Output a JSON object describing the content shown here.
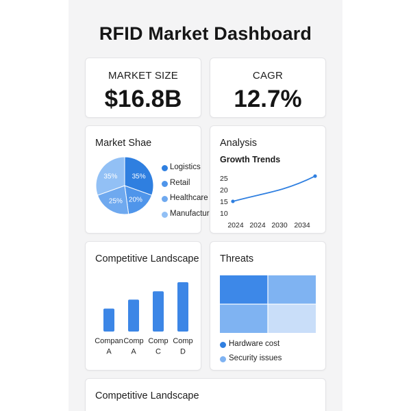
{
  "title": "RFID Market Dashboard",
  "kpis": {
    "market_size": {
      "label": "MARKET SIZE",
      "value": "$16.8B"
    },
    "cagr": {
      "label": "CAGR",
      "value": "12.7%"
    }
  },
  "market_share": {
    "title": "Market Shae",
    "chart_data": {
      "type": "pie",
      "labels": [
        "Logistics",
        "Retail",
        "Healthcare",
        "Manufacturing"
      ],
      "values": [
        35,
        20,
        25,
        35
      ],
      "slice_labels": [
        "35%",
        "20%",
        "25%",
        "35%"
      ],
      "colors": [
        "#2f7fe0",
        "#4f95ea",
        "#6fa9ef",
        "#92c0f5"
      ]
    },
    "legend": [
      {
        "label": "Logistics",
        "color": "#2f7fe0"
      },
      {
        "label": "Retail",
        "color": "#4f95ea"
      },
      {
        "label": "Healthcare",
        "color": "#6fa9ef"
      },
      {
        "label": "Manufacturing",
        "color": "#92c0f5"
      }
    ]
  },
  "analysis": {
    "title": "Analysis",
    "subtitle": "Growth Trends",
    "chart_data": {
      "type": "line",
      "x_tick_labels": [
        "2024",
        "2024",
        "2030",
        "2034"
      ],
      "y_ticks": [
        10,
        15,
        20,
        25
      ],
      "ylim": [
        10,
        27
      ],
      "points": [
        {
          "x": 0,
          "y": 15
        },
        {
          "x": 1,
          "y": 17.3
        },
        {
          "x": 2,
          "y": 20.3
        },
        {
          "x": 3.3,
          "y": 25.8
        }
      ],
      "xlim": [
        0,
        3.3
      ],
      "color": "#2f7fe0"
    }
  },
  "competitive": {
    "title": "Competitive Landscape",
    "chart_data": {
      "type": "bar",
      "categories": [
        "Compan A",
        "Comp A",
        "Comp C",
        "Comp D"
      ],
      "category_lines": [
        [
          "Compan",
          "A"
        ],
        [
          "Comp",
          "A"
        ],
        [
          "Comp",
          "C"
        ],
        [
          "Comp",
          "D"
        ]
      ],
      "values": [
        33,
        46,
        58,
        71
      ],
      "ylim": [
        0,
        75
      ],
      "color": "#3c86e6"
    }
  },
  "threats": {
    "title": "Threats",
    "tiles": [
      {
        "name": "tile-top-left",
        "color": "#3d88e8"
      },
      {
        "name": "tile-top-right",
        "color": "#7fb3f2"
      },
      {
        "name": "tile-bottom-left",
        "color": "#7fb3f2"
      },
      {
        "name": "tile-bottom-right",
        "color": "#c9def9"
      }
    ],
    "legend": [
      {
        "label": "Hardware cost",
        "color": "#2f7fe0"
      },
      {
        "label": "Security issues",
        "color": "#7fb3f2"
      }
    ]
  },
  "competitive2": {
    "title": "Competitive Landscape"
  }
}
